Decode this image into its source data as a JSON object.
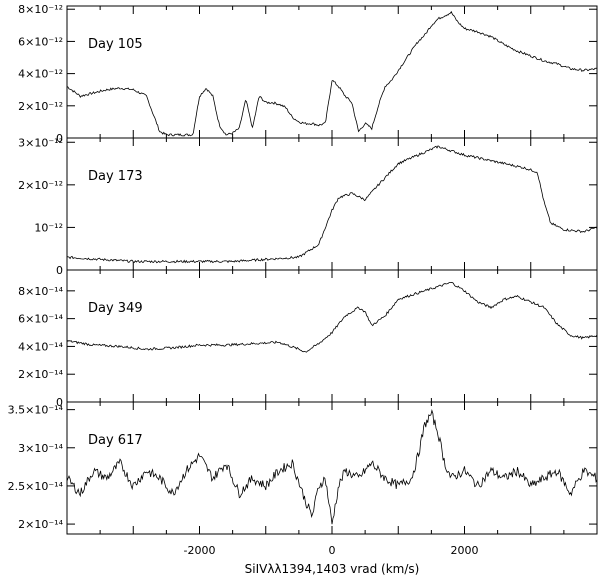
{
  "chart_data": [
    {
      "type": "line",
      "panel_label": "Day 105",
      "xlim": [
        -4000,
        4000
      ],
      "ylim": [
        0,
        8.2e-12
      ],
      "yticks": [
        0,
        2e-12,
        4e-12,
        6e-12,
        8e-12
      ],
      "ytick_labels": [
        "0",
        "2×10⁻¹²",
        "4×10⁻¹²",
        "6×10⁻¹²",
        "8×10⁻¹²"
      ],
      "x": [
        -4000,
        -3800,
        -3600,
        -3400,
        -3200,
        -3000,
        -2800,
        -2700,
        -2600,
        -2500,
        -2400,
        -2200,
        -2100,
        -2000,
        -1900,
        -1800,
        -1700,
        -1600,
        -1500,
        -1400,
        -1300,
        -1200,
        -1100,
        -1000,
        -900,
        -800,
        -700,
        -600,
        -500,
        -400,
        -300,
        -200,
        -100,
        0,
        100,
        200,
        300,
        400,
        500,
        600,
        700,
        800,
        900,
        1000,
        1100,
        1200,
        1300,
        1400,
        1500,
        1600,
        1700,
        1800,
        1900,
        2000,
        2200,
        2400,
        2600,
        2800,
        3000,
        3200,
        3400,
        3600,
        3800,
        4000
      ],
      "values": [
        3.2e-12,
        2.6e-12,
        2.8e-12,
        3e-12,
        3.1e-12,
        3e-12,
        2.6e-12,
        1.5e-12,
        4e-13,
        2e-13,
        2e-13,
        2e-13,
        2e-13,
        2.6e-12,
        3.1e-12,
        2.6e-12,
        8e-13,
        2e-13,
        3e-13,
        6e-13,
        2.4e-12,
        6e-13,
        2.6e-12,
        2.2e-12,
        2.2e-12,
        2.1e-12,
        1.9e-12,
        1.3e-12,
        1e-12,
        9e-13,
        9e-13,
        8e-13,
        9e-13,
        3.6e-12,
        3.2e-12,
        2.6e-12,
        2.2e-12,
        4e-13,
        9e-13,
        6e-13,
        2e-12,
        3.2e-12,
        3.6e-12,
        4.2e-12,
        4.8e-12,
        5.4e-12,
        6e-12,
        6.4e-12,
        7e-12,
        7.4e-12,
        7.6e-12,
        7.8e-12,
        7.2e-12,
        6.8e-12,
        6.6e-12,
        6.3e-12,
        5.8e-12,
        5.4e-12,
        5.1e-12,
        4.8e-12,
        4.6e-12,
        4.3e-12,
        4.2e-12,
        4.3e-12
      ]
    },
    {
      "type": "line",
      "panel_label": "Day 173",
      "xlim": [
        -4000,
        4000
      ],
      "ylim": [
        0,
        3.1e-12
      ],
      "yticks": [
        0,
        1e-12,
        2e-12,
        3e-12
      ],
      "ytick_labels": [
        "0",
        "10⁻¹²",
        "2×10⁻¹²",
        "3×10⁻¹²"
      ],
      "x": [
        -4000,
        -3500,
        -3000,
        -2500,
        -2000,
        -1500,
        -1000,
        -500,
        -200,
        0,
        100,
        300,
        500,
        700,
        1000,
        1300,
        1600,
        1800,
        2000,
        2300,
        2600,
        2900,
        3100,
        3200,
        3300,
        3500,
        3800,
        4000
      ],
      "values": [
        3e-13,
        2.5e-13,
        2e-13,
        2e-13,
        2e-13,
        2e-13,
        2.5e-13,
        3e-13,
        6e-13,
        1.4e-12,
        1.7e-12,
        1.8e-12,
        1.65e-12,
        2e-12,
        2.5e-12,
        2.7e-12,
        2.9e-12,
        2.8e-12,
        2.7e-12,
        2.6e-12,
        2.5e-12,
        2.4e-12,
        2.3e-12,
        1.6e-12,
        1.1e-12,
        9.5e-13,
        9e-13,
        1e-12
      ]
    },
    {
      "type": "line",
      "panel_label": "Day 349",
      "xlim": [
        -4000,
        4000
      ],
      "ylim": [
        0,
        9.5e-14
      ],
      "yticks": [
        0,
        2e-14,
        4e-14,
        6e-14,
        8e-14
      ],
      "ytick_labels": [
        "0",
        "2×10⁻¹⁴",
        "4×10⁻¹⁴",
        "6×10⁻¹⁴",
        "8×10⁻¹⁴"
      ],
      "x": [
        -4000,
        -3600,
        -3200,
        -2800,
        -2400,
        -2000,
        -1600,
        -1200,
        -800,
        -500,
        -400,
        -200,
        0,
        200,
        400,
        500,
        600,
        800,
        1000,
        1200,
        1400,
        1600,
        1800,
        2000,
        2200,
        2400,
        2600,
        2800,
        3000,
        3200,
        3400,
        3600,
        3800,
        4000
      ],
      "values": [
        4.4e-14,
        4.1e-14,
        4e-14,
        3.8e-14,
        3.9e-14,
        4.1e-14,
        4.1e-14,
        4.2e-14,
        4.3e-14,
        3.8e-14,
        3.6e-14,
        4.2e-14,
        5e-14,
        6.2e-14,
        6.8e-14,
        6.5e-14,
        5.5e-14,
        6.2e-14,
        7.4e-14,
        7.7e-14,
        8e-14,
        8.3e-14,
        8.6e-14,
        8e-14,
        7.2e-14,
        6.8e-14,
        7.4e-14,
        7.6e-14,
        7.2e-14,
        6.8e-14,
        5.6e-14,
        4.8e-14,
        4.6e-14,
        4.8e-14
      ]
    },
    {
      "type": "line",
      "panel_label": "Day 617",
      "xlim": [
        -4000,
        4000
      ],
      "ylim": [
        1.87e-14,
        3.6e-14
      ],
      "yticks": [
        2e-14,
        2.5e-14,
        3e-14,
        3.5e-14
      ],
      "ytick_labels": [
        "2×10⁻¹⁴",
        "2.5×10⁻¹⁴",
        "3×10⁻¹⁴",
        "3.5×10⁻¹⁴"
      ],
      "xticks": [
        -2000,
        0,
        2000
      ],
      "xtick_labels": [
        "-2000",
        "0",
        "2000"
      ],
      "x": [
        -4000,
        -3800,
        -3600,
        -3400,
        -3200,
        -3000,
        -2800,
        -2600,
        -2400,
        -2200,
        -2000,
        -1800,
        -1600,
        -1400,
        -1200,
        -1000,
        -800,
        -600,
        -400,
        -300,
        -200,
        -100,
        0,
        100,
        200,
        400,
        600,
        800,
        1000,
        1200,
        1300,
        1400,
        1500,
        1600,
        1700,
        1800,
        2000,
        2200,
        2400,
        2600,
        2800,
        3000,
        3200,
        3400,
        3600,
        3800,
        4000
      ],
      "values": [
        2.6e-14,
        2.4e-14,
        2.7e-14,
        2.6e-14,
        2.8e-14,
        2.5e-14,
        2.7e-14,
        2.6e-14,
        2.4e-14,
        2.7e-14,
        2.9e-14,
        2.6e-14,
        2.8e-14,
        2.4e-14,
        2.6e-14,
        2.5e-14,
        2.7e-14,
        2.8e-14,
        2.3e-14,
        2.1e-14,
        2.5e-14,
        2.6e-14,
        2e-14,
        2.5e-14,
        2.7e-14,
        2.6e-14,
        2.8e-14,
        2.6e-14,
        2.5e-14,
        2.6e-14,
        2.9e-14,
        3.3e-14,
        3.45e-14,
        3.2e-14,
        2.8e-14,
        2.6e-14,
        2.7e-14,
        2.5e-14,
        2.7e-14,
        2.6e-14,
        2.7e-14,
        2.5e-14,
        2.6e-14,
        2.7e-14,
        2.4e-14,
        2.7e-14,
        2.6e-14
      ]
    }
  ],
  "xlabel": "SiIVλλ1394,1403 vrad (km/s)",
  "colors": {
    "line": "#000000",
    "background": "#ffffff"
  }
}
